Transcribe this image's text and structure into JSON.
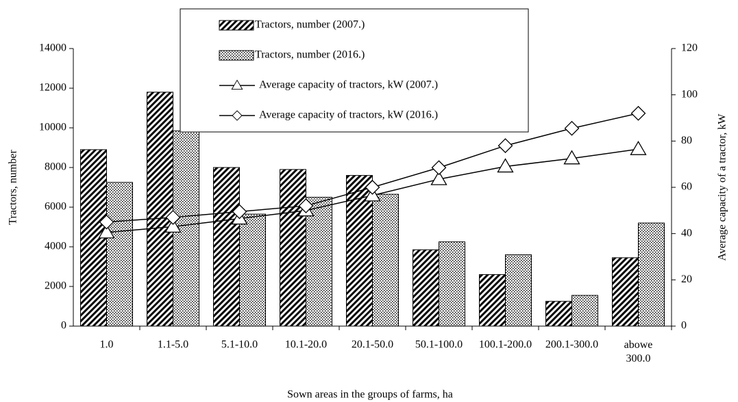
{
  "chart_data": {
    "type": "bar",
    "xlabel": "Sown areas in the groups of farms, ha",
    "ylabel": "Tractors, number",
    "y2label": "Average capacity of a tractor, kW",
    "categories": [
      "1.0",
      "1.1-5.0",
      "5.1-10.0",
      "10.1-20.0",
      "20.1-50.0",
      "50.1-100.0",
      "100.1-200.0",
      "200.1-300.0",
      "abowe 300.0"
    ],
    "series": [
      {
        "name": "Tractors, number (2007.)",
        "type": "bar",
        "pattern": "hatch",
        "color": "#000000",
        "values": [
          8900,
          11800,
          8000,
          7900,
          7600,
          3850,
          2600,
          1250,
          3450
        ]
      },
      {
        "name": "Tractors, number (2016.)",
        "type": "bar",
        "pattern": "dots",
        "color": "#000000",
        "values": [
          7250,
          9850,
          5650,
          6500,
          6650,
          4250,
          3600,
          1550,
          5200
        ]
      },
      {
        "name": "Average capacity of tractors, kW (2007.)",
        "type": "line",
        "marker": "triangle",
        "axis": "y2",
        "color": "#000000",
        "values": [
          40.5,
          43,
          46.5,
          50,
          56.5,
          63.5,
          69,
          72.5,
          76.5
        ]
      },
      {
        "name": "Average capacity of tractors, kW (2016.)",
        "type": "line",
        "marker": "diamond",
        "axis": "y2",
        "color": "#000000",
        "values": [
          45,
          47,
          49.5,
          52,
          60,
          68.5,
          78,
          85.5,
          92
        ]
      }
    ],
    "ylim": [
      0,
      14000
    ],
    "yticks": [
      0,
      2000,
      4000,
      6000,
      8000,
      10000,
      12000,
      14000
    ],
    "y2lim": [
      0,
      120
    ],
    "y2ticks": [
      0,
      20,
      40,
      60,
      80,
      100,
      120
    ]
  }
}
